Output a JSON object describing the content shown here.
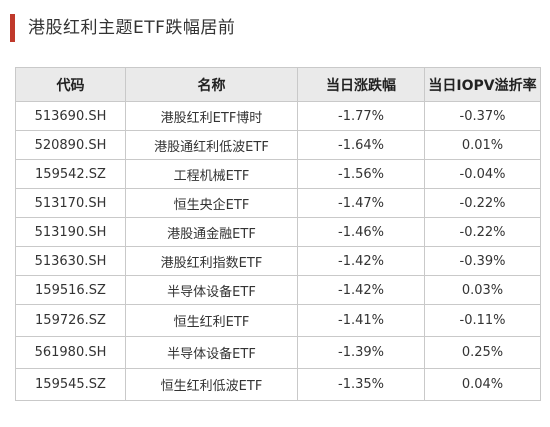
{
  "title": "港股红利主题ETF跌幅居前",
  "colors": {
    "accent": "#c0392b",
    "header_bg": "#eaeaea",
    "border": "#c9c9c9"
  },
  "table": {
    "headers": [
      "代码",
      "名称",
      "当日涨跌幅",
      "当日IOPV溢折率"
    ],
    "rows": [
      [
        "513690.SH",
        "港股红利ETF博时",
        "-1.77%",
        "-0.37%"
      ],
      [
        "520890.SH",
        "港股通红利低波ETF",
        "-1.64%",
        "0.01%"
      ],
      [
        "159542.SZ",
        "工程机械ETF",
        "-1.56%",
        "-0.04%"
      ],
      [
        "513170.SH",
        "恒生央企ETF",
        "-1.47%",
        "-0.22%"
      ],
      [
        "513190.SH",
        "港股通金融ETF",
        "-1.46%",
        "-0.22%"
      ],
      [
        "513630.SH",
        "港股红利指数ETF",
        "-1.42%",
        "-0.39%"
      ],
      [
        "159516.SZ",
        "半导体设备ETF",
        "-1.42%",
        "0.03%"
      ],
      [
        "159726.SZ",
        "恒生红利ETF",
        "-1.41%",
        "-0.11%"
      ],
      [
        "561980.SH",
        "半导体设备ETF",
        "-1.39%",
        "0.25%"
      ],
      [
        "159545.SZ",
        "恒生红利低波ETF",
        "-1.35%",
        "0.04%"
      ]
    ]
  }
}
